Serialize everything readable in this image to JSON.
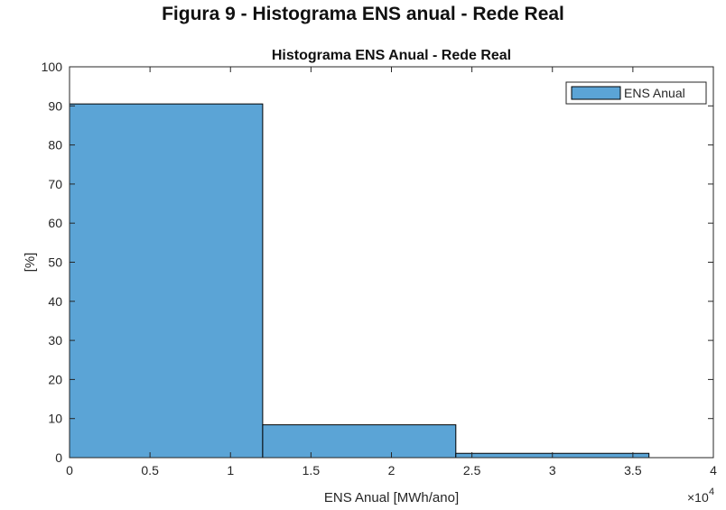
{
  "figure_caption": "Figura 9 - Histograma ENS anual - Rede Real",
  "chart_data": {
    "type": "bar",
    "title": "Histograma ENS Anual - Rede Real",
    "xlabel": "ENS Anual [MWh/ano]",
    "ylabel": "[%]",
    "x_exponent_label": "×10",
    "x_exponent_power": "4",
    "xlim": [
      0,
      40000
    ],
    "ylim": [
      0,
      100
    ],
    "xticks": [
      0,
      5000,
      10000,
      15000,
      20000,
      25000,
      30000,
      35000,
      40000
    ],
    "xtick_labels": [
      "0",
      "0.5",
      "1",
      "1.5",
      "2",
      "2.5",
      "3",
      "3.5",
      "4"
    ],
    "yticks": [
      0,
      10,
      20,
      30,
      40,
      50,
      60,
      70,
      80,
      90,
      100
    ],
    "bin_edges": [
      0,
      12000,
      24000,
      36000
    ],
    "values": [
      90.5,
      8.4,
      1.1
    ],
    "series": [
      {
        "name": "ENS Anual",
        "values": [
          90.5,
          8.4,
          1.1
        ]
      }
    ],
    "bar_color": "#5ba4d6",
    "edge_color": "#000000",
    "legend_position": "top-right",
    "grid": false
  }
}
